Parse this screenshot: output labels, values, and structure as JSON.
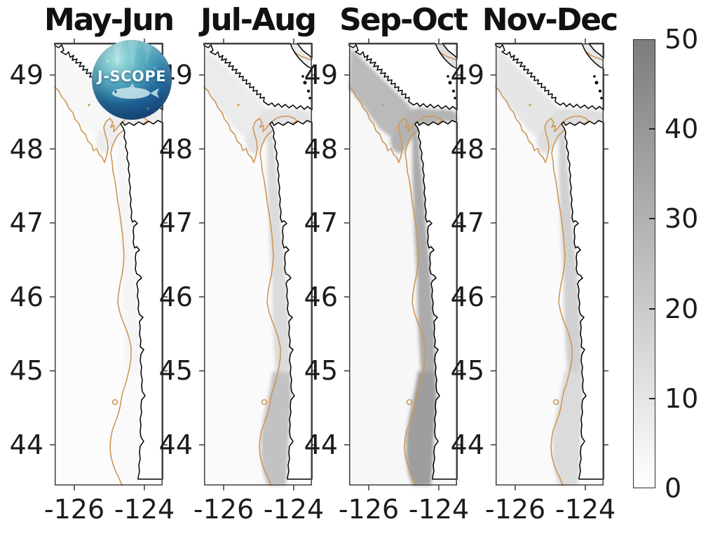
{
  "logo": {
    "text": "J-SCOPE"
  },
  "axes": {
    "y_ticks": [
      "49",
      "48",
      "47",
      "46",
      "45",
      "44"
    ],
    "x_ticks": [
      "-126",
      "-124"
    ]
  },
  "colorbar": {
    "tick_values": [
      50,
      40,
      30,
      20,
      10,
      0
    ],
    "min": 0,
    "max": 50,
    "top_color": "#7d7d7d",
    "bottom_color": "#ffffff"
  },
  "colors": {
    "contour_line": "#cd9757",
    "coastline": "#000000",
    "land": "#ffffff",
    "panel_border": "#404040",
    "tick_mark": "#2b2b2b"
  },
  "chart_data": {
    "type": "heatmap",
    "subtype": "geographic small-multiples, WA-OR coastal ocean, white-to-gray shading",
    "panels": [
      {
        "title": "May-Jun",
        "regions": {
          "offshore": 1,
          "nw_shelf": 3,
          "strait": 7,
          "coastal": 4,
          "south": 2,
          "georgia": 5
        }
      },
      {
        "title": "Jul-Aug",
        "regions": {
          "offshore": 2,
          "nw_shelf": 8,
          "strait": 11,
          "coastal": 14,
          "south": 24,
          "georgia": 7
        }
      },
      {
        "title": "Sep-Oct",
        "regions": {
          "offshore": 3,
          "nw_shelf": 27,
          "strait": 30,
          "coastal": 33,
          "south": 38,
          "georgia": 12
        }
      },
      {
        "title": "Nov-Dec",
        "regions": {
          "offshore": 2,
          "nw_shelf": 10,
          "strait": 13,
          "coastal": 18,
          "south": 14,
          "georgia": 9
        }
      }
    ],
    "x_axis": {
      "ticks": [
        -126,
        -124
      ],
      "range_approx": [
        -126.55,
        -123.45
      ]
    },
    "y_axis": {
      "ticks": [
        49,
        48,
        47,
        46,
        45,
        44
      ],
      "range_approx": [
        43.45,
        49.45
      ]
    },
    "colorbar": {
      "range": [
        0,
        50
      ],
      "ticks": [
        0,
        10,
        20,
        30,
        40,
        50
      ],
      "orientation": "vertical",
      "colormap": "white-to-gray"
    },
    "map_features": {
      "contour_line": "orange shelf-break isobath",
      "coastline": "black outline, white land"
    }
  }
}
